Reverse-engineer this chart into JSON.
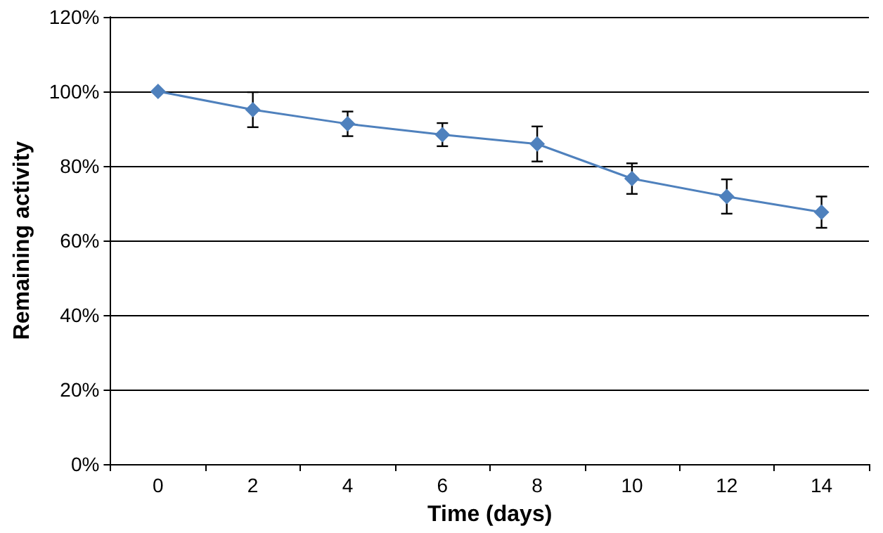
{
  "chart_data": {
    "type": "line",
    "xlabel": "Time (days)",
    "ylabel": "Remaining activity",
    "categories": [
      "0",
      "2",
      "4",
      "6",
      "8",
      "10",
      "12",
      "14"
    ],
    "series": [
      {
        "color": "#4f81bd",
        "values": [
          100,
          95.1,
          91.3,
          88.4,
          85.9,
          76.6,
          71.8,
          67.6
        ],
        "errors": [
          null,
          4.7,
          3.3,
          3.1,
          4.7,
          4.1,
          4.6,
          4.2
        ]
      }
    ],
    "ylim": [
      0,
      120
    ],
    "yticks": [
      {
        "value": 0,
        "label": "0%"
      },
      {
        "value": 20,
        "label": "20%"
      },
      {
        "value": 40,
        "label": "40%"
      },
      {
        "value": 60,
        "label": "60%"
      },
      {
        "value": 80,
        "label": "80%"
      },
      {
        "value": 100,
        "label": "100%"
      },
      {
        "value": 120,
        "label": "120%"
      }
    ],
    "grid": "y",
    "marker": "diamond",
    "line_style": "solid"
  }
}
